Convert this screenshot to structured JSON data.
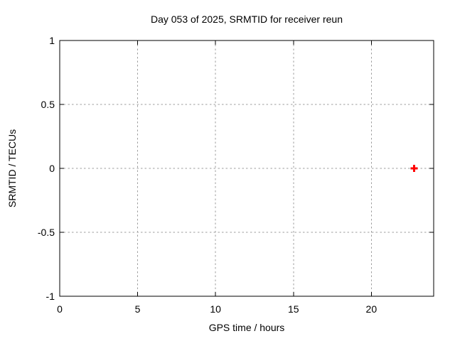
{
  "window": {
    "background": "#ffffff"
  },
  "chart_data": {
    "type": "scatter",
    "title": "Day 053 of 2025, SRMTID for receiver reun",
    "xlabel": "GPS time / hours",
    "ylabel": "SRMTID / TECUs",
    "xlim": [
      0,
      24
    ],
    "ylim": [
      -1,
      1
    ],
    "xticks": [
      0,
      5,
      10,
      15,
      20
    ],
    "yticks": [
      -1,
      -0.5,
      0,
      0.5,
      1
    ],
    "grid": "dashed",
    "grid_color": "#9e9e9e",
    "axis_color": "#000000",
    "plot_background": "#ffffff",
    "legend": "none",
    "series": [
      {
        "name": "SRMTID",
        "marker": "plus",
        "color": "#ff0000",
        "points": [
          {
            "x": 22.75,
            "y": 0.0
          }
        ]
      }
    ]
  }
}
